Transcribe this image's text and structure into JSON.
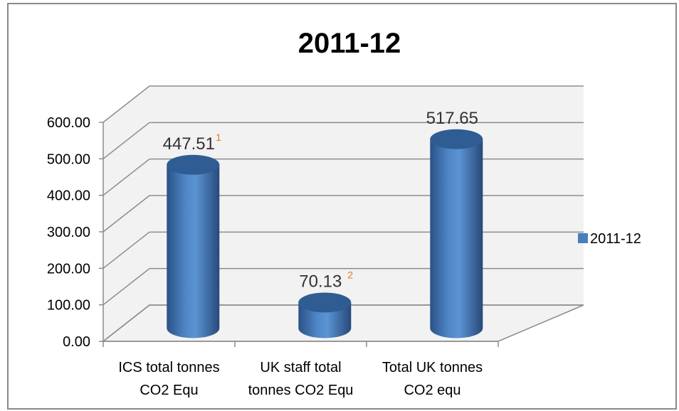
{
  "chart_data": {
    "type": "bar",
    "title": "2011-12",
    "categories": [
      [
        "ICS total tonnes",
        "CO2 Equ"
      ],
      [
        "UK staff total",
        "tonnes CO2 Equ"
      ],
      [
        "Total UK tonnes",
        "CO2 equ"
      ]
    ],
    "series": [
      {
        "name": "2011-12",
        "values": [
          447.51,
          70.13,
          517.65
        ],
        "labels": [
          "447.51",
          "70.13",
          "517.65"
        ],
        "notes": [
          "1",
          "2",
          ""
        ],
        "color": "#4a7ebb"
      }
    ],
    "y_ticks": [
      "0.00",
      "100.00",
      "200.00",
      "300.00",
      "400.00",
      "500.00",
      "600.00"
    ],
    "ylim": [
      0,
      600
    ],
    "xlabel": "",
    "ylabel": "",
    "grid": true,
    "legend": "right",
    "colors": {
      "bar": "#4a7ebb",
      "bar_dark": "#23466f",
      "bar_top": "#2f5d93",
      "grid": "#8c8c8c",
      "wall": "#f2f2f2",
      "note": "#e07b1c"
    }
  }
}
